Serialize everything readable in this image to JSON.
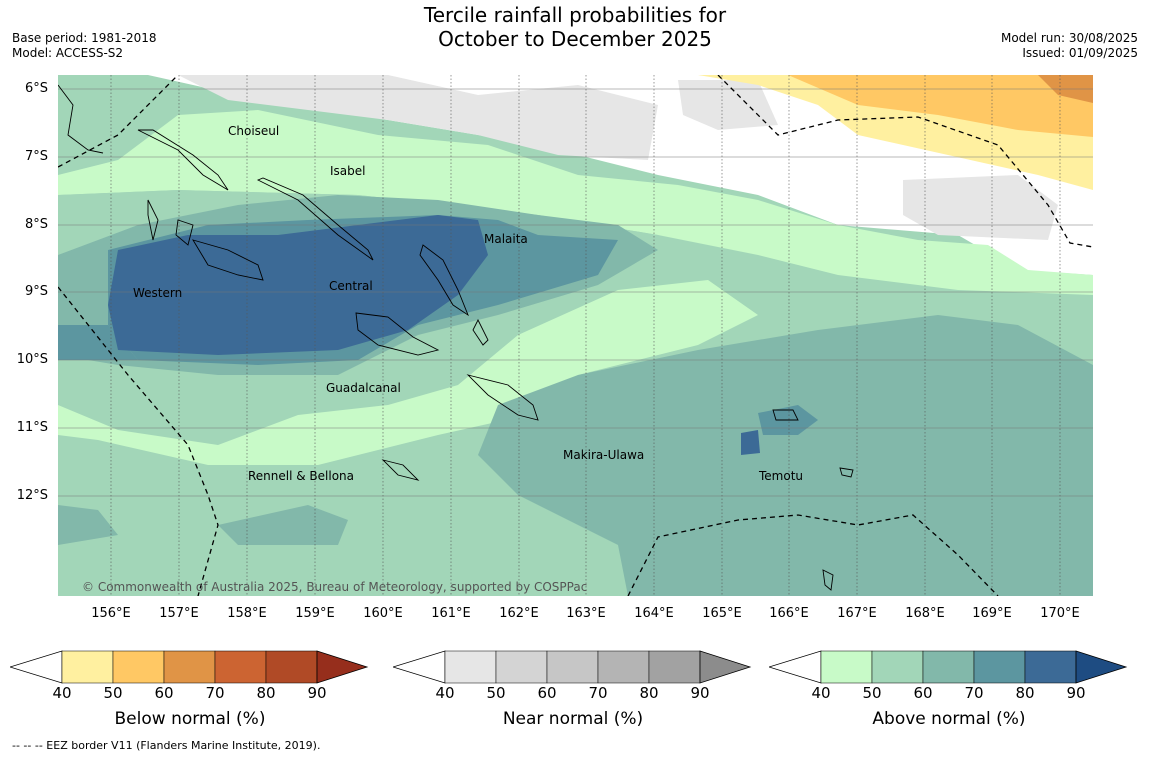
{
  "header": {
    "title_line1": "Tercile rainfall probabilities for",
    "title_line2": "October to December 2025",
    "base_period": "Base period: 1981-2018",
    "model": "Model: ACCESS-S2",
    "model_run": "Model run: 30/08/2025",
    "issued": "Issued: 01/09/2025"
  },
  "map": {
    "latitude_labels": [
      "6°S",
      "7°S",
      "8°S",
      "9°S",
      "10°S",
      "11°S",
      "12°S"
    ],
    "longitude_labels": [
      "156°E",
      "157°E",
      "158°E",
      "159°E",
      "160°E",
      "161°E",
      "162°E",
      "163°E",
      "164°E",
      "165°E",
      "166°E",
      "167°E",
      "168°E",
      "169°E",
      "170°E"
    ],
    "regions": {
      "choiseul": "Choiseul",
      "isabel": "Isabel",
      "malaita": "Malaita",
      "western": "Western",
      "central": "Central",
      "guadalcanal": "Guadalcanal",
      "makira_ulawa": "Makira-Ulawa",
      "temotu": "Temotu",
      "rennell_bellona": "Rennell & Bellona"
    },
    "copyright": "© Commonwealth of Australia 2025, Bureau of Meteorology, supported by COSPPac"
  },
  "colorbars": {
    "below": {
      "title": "Below normal (%)",
      "ticks": [
        "40",
        "50",
        "60",
        "70",
        "80",
        "90"
      ],
      "colors": [
        "#fff0a0",
        "#ffc864",
        "#e09446",
        "#cc6432",
        "#b04a26",
        "#962e1c"
      ]
    },
    "near": {
      "title": "Near normal (%)",
      "ticks": [
        "40",
        "50",
        "60",
        "70",
        "80",
        "90"
      ],
      "colors": [
        "#e6e6e6",
        "#d4d4d4",
        "#c6c6c6",
        "#b4b4b4",
        "#a2a2a2",
        "#8c8c8c"
      ]
    },
    "above": {
      "title": "Above normal (%)",
      "ticks": [
        "40",
        "50",
        "60",
        "70",
        "80",
        "90"
      ],
      "colors": [
        "#c8fac8",
        "#a2d6b8",
        "#82b8aa",
        "#5c96a0",
        "#3c6a96",
        "#1e4c82"
      ]
    }
  },
  "legend": {
    "eez_note": "--  --  -- EEZ border V11 (Flanders Marine Institute, 2019)."
  }
}
